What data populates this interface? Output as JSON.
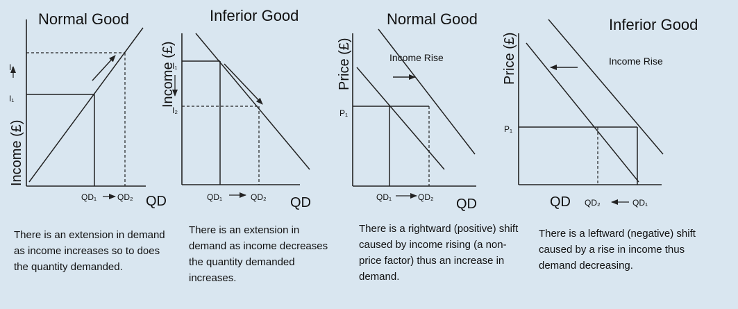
{
  "panels": [
    {
      "title": "Normal Good",
      "y_axis": "Income (£)",
      "x_axis": "QD",
      "y_ticks": [
        "I₂",
        "I₁"
      ],
      "x_ticks": [
        "QD₁",
        "QD₂"
      ],
      "description": "There is an extension in demand as income increases so to does the quantity demanded."
    },
    {
      "title": "Inferior Good",
      "y_axis": "Income (£)",
      "x_axis": "QD",
      "y_ticks": [
        "I₁",
        "I₂"
      ],
      "x_ticks": [
        "QD₁",
        "QD₂"
      ],
      "description": "There is an extension in demand as income decreases the quantity demanded increases."
    },
    {
      "title": "Normal Good",
      "y_axis": "Price (£)",
      "x_axis": "QD",
      "y_ticks": [
        "P₁"
      ],
      "x_ticks": [
        "QD₁",
        "QD₂"
      ],
      "annotation": "Income Rise",
      "description": "There is a rightward (positive) shift caused by income rising (a non-price factor) thus an increase in demand."
    },
    {
      "title": "Inferior Good",
      "y_axis": "Price (£)",
      "x_axis": "QD",
      "y_ticks": [
        "P₁"
      ],
      "x_ticks": [
        "QD₂",
        "QD₁"
      ],
      "annotation": "Income Rise",
      "description": "There is a leftward (negative) shift caused by a rise in income thus demand decreasing."
    }
  ],
  "colors": {
    "background": "#d9e6f0",
    "line": "#222222"
  }
}
